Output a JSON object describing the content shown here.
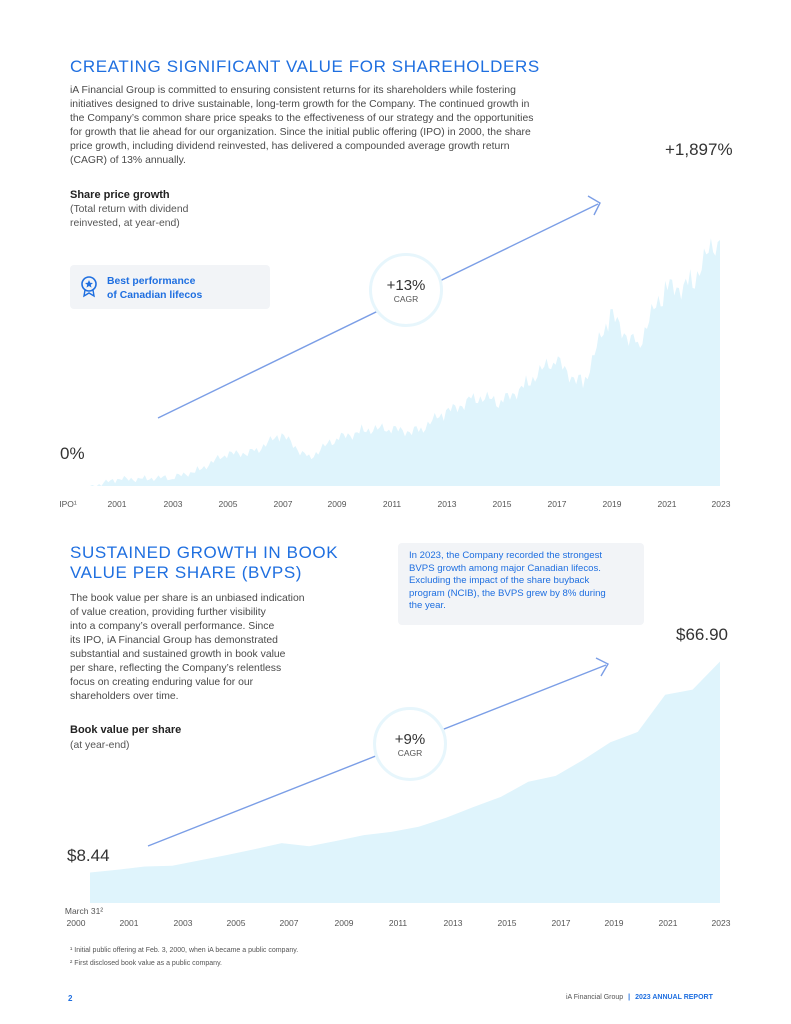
{
  "section1": {
    "title": "CREATING SIGNIFICANT VALUE FOR SHAREHOLDERS",
    "paragraph_lines": [
      "iA Financial Group is committed to ensuring consistent returns for its shareholders while fostering",
      "initiatives designed to drive sustainable, long-term growth for the Company. The continued growth in",
      "the Company’s common share price speaks to the effectiveness of our strategy and the opportunities",
      "for growth that lie ahead for our organization. Since the initial public offering (IPO) in 2000, the share",
      "price growth, including dividend reinvested, has delivered a compounded average growth return",
      "(CAGR) of 13% annually."
    ],
    "total_growth": "+1,897%",
    "chart_title": "Share price growth",
    "chart_subtitle_lines": [
      "(Total return with dividend",
      "reinvested, at year-end)"
    ],
    "badge_lines": [
      "Best performance",
      "of Canadian lifecos"
    ],
    "cagr_value": "+13%",
    "cagr_label": "CAGR",
    "start_label": "0%"
  },
  "section2": {
    "title_lines": [
      "SUSTAINED GROWTH IN BOOK",
      "VALUE PER SHARE (BVPS)"
    ],
    "paragraph_lines": [
      "The book value per share is an unbiased indication",
      "of value creation, providing further visibility",
      "into a company’s overall performance. Since",
      "its IPO, iA Financial Group has demonstrated",
      "substantial and sustained growth in book value",
      "per share, reflecting the Company’s relentless",
      "focus on creating enduring value for our",
      "shareholders over time."
    ],
    "callout_lines": [
      "In 2023, the Company recorded the strongest",
      "BVPS growth among major Canadian lifecos.",
      "Excluding the impact of the share buyback",
      "program (NCIB), the BVPS grew by 8% during",
      "the year."
    ],
    "end_value": "$66.90",
    "start_value": "$8.44",
    "chart_title": "Book value per share",
    "chart_subtitle": "(at year-end)",
    "cagr_value": "+9%",
    "cagr_label": "CAGR"
  },
  "footnotes": [
    "¹ Initial public offering at Feb. 3, 2000, when iA became a public company.",
    "² First disclosed book value as a public company."
  ],
  "footer": {
    "page_number": "2",
    "company": "iA Financial Group",
    "report": "2023 ANNUAL REPORT"
  },
  "colors": {
    "accent": "#1f6fe0",
    "area_fill": "#dff4fc",
    "arrow": "#7b9ee6",
    "callout_bg": "#f2f4f7"
  },
  "chart_data": [
    {
      "type": "area",
      "title": "Share price growth",
      "subtitle": "(Total return with dividend reinvested, at year-end)",
      "x_label_first": "IPO¹",
      "x_tick_labels": [
        "IPO¹",
        "2001",
        "2003",
        "2005",
        "2007",
        "2009",
        "2011",
        "2013",
        "2015",
        "2017",
        "2019",
        "2021",
        "2023"
      ],
      "series": [
        {
          "x": [
            2000,
            2001,
            2002,
            2003,
            2004,
            2005,
            2006,
            2007,
            2008,
            2009,
            2010,
            2011,
            2012,
            2013,
            2014,
            2015,
            2016,
            2017,
            2018,
            2019,
            2020,
            2021,
            2022,
            2023
          ],
          "values": [
            0,
            40,
            70,
            50,
            140,
            230,
            280,
            380,
            230,
            350,
            450,
            420,
            440,
            550,
            700,
            630,
            820,
            950,
            800,
            1300,
            1100,
            1500,
            1600,
            1897
          ]
        }
      ],
      "unit": "%",
      "start_label": "0%",
      "end_label": "+1,897%",
      "cagr": "+13%"
    },
    {
      "type": "area",
      "title": "Book value per share",
      "subtitle": "(at year-end)",
      "x_tick_labels": [
        "March 31²",
        "2000",
        "2001",
        "2003",
        "2005",
        "2007",
        "2009",
        "2011",
        "2013",
        "2015",
        "2017",
        "2019",
        "2021",
        "2023"
      ],
      "series": [
        {
          "x": [
            2000,
            2001,
            2002,
            2003,
            2004,
            2005,
            2006,
            2007,
            2008,
            2009,
            2010,
            2011,
            2012,
            2013,
            2014,
            2015,
            2016,
            2017,
            2018,
            2019,
            2020,
            2021,
            2022,
            2023
          ],
          "values": [
            8.44,
            9.2,
            10.1,
            10.3,
            11.8,
            13.3,
            14.9,
            16.6,
            15.7,
            17.2,
            18.8,
            19.7,
            21.1,
            23.6,
            26.6,
            29.4,
            33.6,
            35.2,
            39.6,
            44.5,
            47.4,
            57.7,
            59.1,
            66.9
          ]
        }
      ],
      "unit": "$",
      "start_label": "$8.44",
      "end_label": "$66.90",
      "cagr": "+9%"
    }
  ]
}
